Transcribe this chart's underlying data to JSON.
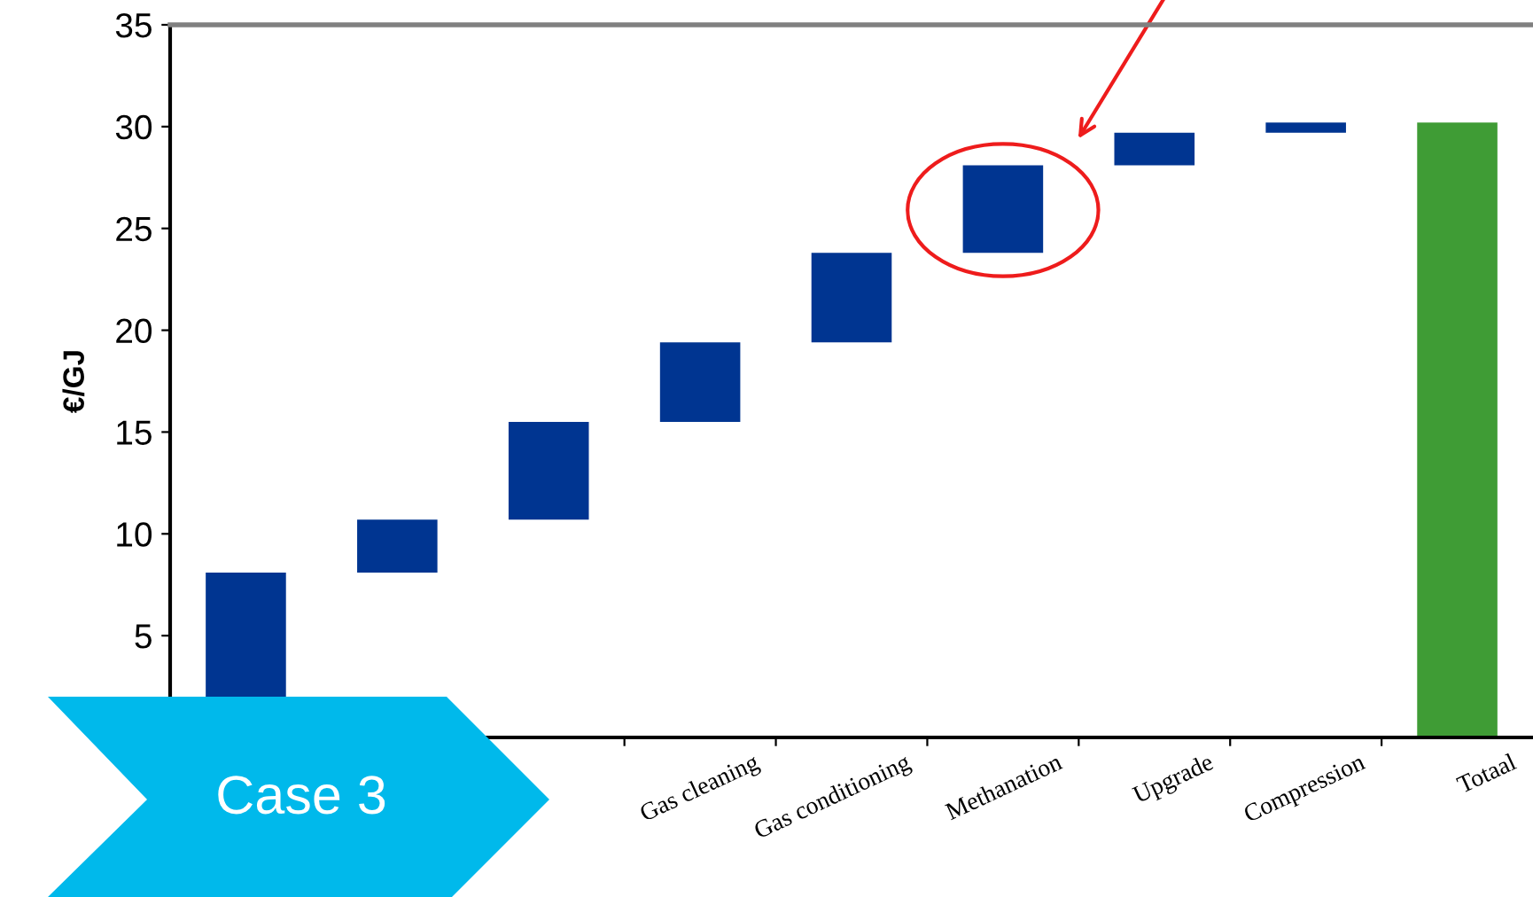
{
  "chart_data": {
    "type": "bar",
    "ylabel": "€/GJ",
    "categories": [
      null,
      null,
      null,
      "Gas cleaning",
      "Gas conditioning",
      "Methanation",
      "Upgrade",
      "Compression",
      "Totaal"
    ],
    "base": [
      0,
      8.1,
      10.7,
      15.5,
      19.4,
      23.8,
      28.1,
      29.7,
      0
    ],
    "values": [
      8.1,
      2.6,
      4.8,
      3.9,
      4.4,
      4.3,
      1.6,
      0.5,
      30.2
    ],
    "colors": [
      "#003591",
      "#003591",
      "#003591",
      "#003591",
      "#003591",
      "#003591",
      "#003591",
      "#003591",
      "#3f9c35"
    ],
    "ylim": [
      0,
      35
    ],
    "yticks": [
      5,
      10,
      15,
      20,
      25,
      30,
      35
    ],
    "grid": false,
    "annotations": [
      "Case 3"
    ]
  }
}
